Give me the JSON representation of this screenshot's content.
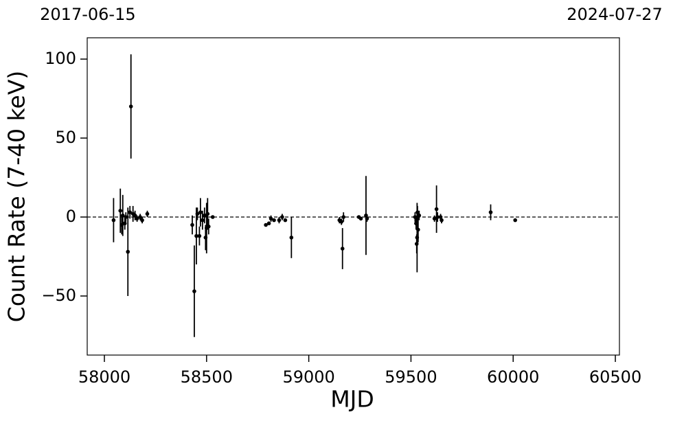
{
  "chart_data": {
    "type": "scatter",
    "xlabel": "MJD",
    "ylabel": "Count Rate (7-40 keV)",
    "xlim": [
      57916,
      60520
    ],
    "ylim": [
      -87.4,
      113.5
    ],
    "xticks": [
      58000,
      58500,
      59000,
      59500,
      60000,
      60500
    ],
    "yticks": [
      {
        "value": -50,
        "label": "−50"
      },
      0,
      50,
      100
    ],
    "x2ticks": [
      {
        "value": 57919,
        "label": "2017-06-15"
      },
      {
        "value": 60518,
        "label": "2024-07-27"
      }
    ],
    "reference_line": 0,
    "color": "#000000",
    "x": [
      58045,
      58078,
      58085,
      58090,
      58100,
      58105,
      58115,
      58125,
      58130,
      58140,
      58150,
      58160,
      58175,
      58185,
      58210,
      58430,
      58440,
      58450,
      58455,
      58465,
      58470,
      58480,
      58490,
      58495,
      58500,
      58505,
      58510,
      58530,
      58790,
      58805,
      58815,
      58830,
      58855,
      58870,
      58885,
      58915,
      59150,
      59160,
      59165,
      59170,
      59245,
      59255,
      59280,
      59285,
      59520,
      59525,
      59528,
      59530,
      59532,
      59535,
      59540,
      59615,
      59625,
      59630,
      59645,
      59650,
      59890,
      60010
    ],
    "values": [
      -2,
      4,
      -5,
      1,
      -4,
      0,
      -22,
      3,
      70,
      2,
      1,
      -1,
      0,
      -2,
      2,
      -5,
      -47,
      -12,
      2,
      -12,
      3,
      -2,
      1,
      -13,
      -7,
      2,
      -6,
      0,
      -5,
      -4,
      -1,
      -2,
      -2,
      0,
      -2,
      -13,
      -2,
      -3,
      -20,
      0,
      0,
      -1,
      1,
      -1,
      0,
      -4,
      -17,
      -13,
      3,
      -8,
      1,
      -1,
      5,
      0,
      0,
      -2,
      3,
      -2
    ],
    "errors": [
      14,
      14,
      6,
      13,
      4,
      3,
      28,
      4,
      33,
      5,
      3,
      2,
      2,
      2,
      2,
      6,
      29,
      18,
      4,
      6,
      9,
      6,
      5,
      8,
      16,
      10,
      5,
      1,
      1,
      1,
      2,
      1,
      2,
      2,
      1,
      13,
      2,
      2,
      13,
      3,
      1,
      1,
      25,
      2,
      3,
      4,
      6,
      22,
      4,
      8,
      3,
      2,
      15,
      3,
      2,
      2,
      5,
      1
    ]
  }
}
